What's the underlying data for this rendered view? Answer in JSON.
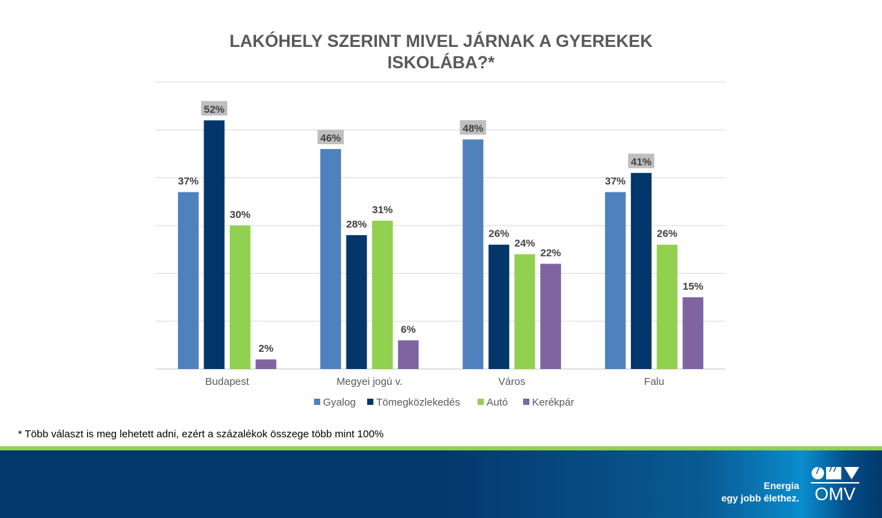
{
  "chart_data": {
    "type": "bar",
    "title": "LAKÓHELY SZERINT MIVEL JÁRNAK A GYEREKEK ISKOLÁBA?*",
    "title_lines": [
      "LAKÓHELY SZERINT MIVEL JÁRNAK A GYEREKEK",
      "ISKOLÁBA?*"
    ],
    "categories": [
      "Budapest",
      "Megyei jogú v.",
      "Város",
      "Falu"
    ],
    "series": [
      {
        "name": "Gyalog",
        "color": "#4f81bd",
        "values": [
          37,
          46,
          48,
          37
        ]
      },
      {
        "name": "Tömegközlekedés",
        "color": "#03366b",
        "values": [
          52,
          28,
          26,
          41
        ]
      },
      {
        "name": "Autó",
        "color": "#92d050",
        "values": [
          30,
          31,
          24,
          26
        ]
      },
      {
        "name": "Kerékpár",
        "color": "#8064a2",
        "values": [
          2,
          6,
          22,
          15
        ]
      }
    ],
    "value_suffix": "%",
    "ylim": [
      0,
      60
    ],
    "ytick_step": 10,
    "grid": true,
    "legend": "bottom",
    "highlight": "max value per category shown with gray label background",
    "xlabel": "",
    "ylabel": ""
  },
  "footnote": "* Több választ is meg lehetett adni, ezért a százalékok összege több mint 100%",
  "footer": {
    "slogan_line1": "Energia",
    "slogan_line2": "egy jobb élethez.",
    "logo_text": "OMV"
  }
}
